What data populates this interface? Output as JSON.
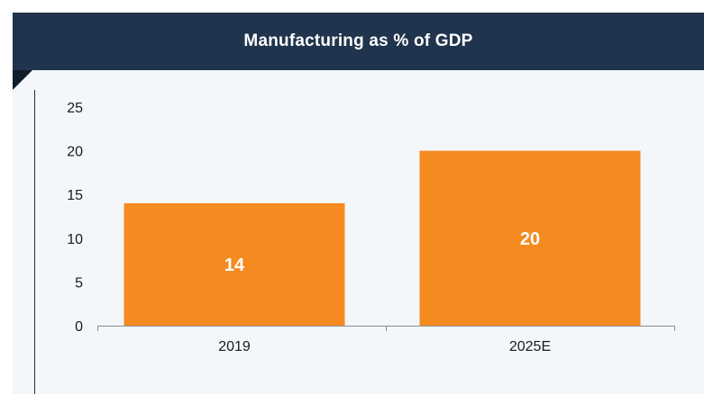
{
  "chart_data": {
    "type": "bar",
    "title": "Manufacturing as % of GDP",
    "categories": [
      "2019",
      "2025E"
    ],
    "values": [
      14,
      20
    ],
    "data_labels": [
      "14",
      "20"
    ],
    "ylim": [
      0,
      25
    ],
    "yticks": [
      "0",
      "5",
      "10",
      "15",
      "20",
      "25"
    ],
    "xlabel": "",
    "ylabel": "",
    "grid": false,
    "legend": "none",
    "bar_color": "#f58a20",
    "header_color": "#20344d"
  }
}
